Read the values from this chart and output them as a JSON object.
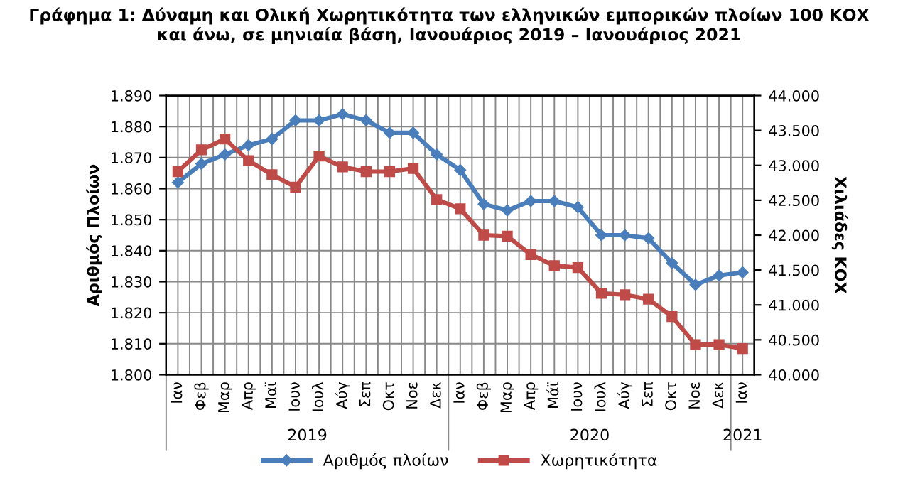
{
  "chart_data": {
    "type": "line",
    "title": "Γράφημα 1: Δύναμη και Ολική Χωρητικότητα των ελληνικών εμπορικών πλοίων 100 ΚΟΧ\nκαι άνω, σε μηνιαία βάση, Ιανουάριος 2019 – Ιανουάριος 2021",
    "ylabel": "Αριθμός Πλοίων",
    "y2label": "Χιλιάδες ΚΟΧ",
    "categories": [
      "Ιαν",
      "Φεβ",
      "Μαρ",
      "Απρ",
      "Μαϊ",
      "Ιουν",
      "Ιουλ",
      "Αύγ",
      "Σεπ",
      "Οκτ",
      "Νοε",
      "Δεκ",
      "Ιαν",
      "Φεβ",
      "Μαρ",
      "Απρ",
      "Μάϊ",
      "Ιουν",
      "Ιουλ",
      "Αύγ",
      "Σεπ",
      "Οκτ",
      "Νοε",
      "Δεκ",
      "Ιαν"
    ],
    "series": [
      {
        "name": "Αριθμός πλοίων",
        "color": "#4a7ebb",
        "marker": "diamond",
        "values": [
          1862,
          1868,
          1871,
          1874,
          1876,
          1882,
          1882,
          1884,
          1882,
          1878,
          1878,
          1871,
          1866,
          1855,
          1853,
          1856,
          1856,
          1854,
          1845,
          1845,
          1844,
          1836,
          1829,
          1832,
          1833
        ]
      },
      {
        "name": "Χωρητικότητα",
        "color": "#be4b48",
        "marker": "square",
        "axis": "y2",
        "values": [
          42911,
          43222,
          43378,
          43067,
          42867,
          42689,
          43133,
          42978,
          42911,
          42911,
          42956,
          42511,
          42378,
          42000,
          41986,
          41722,
          41563,
          41535,
          41167,
          41146,
          41083,
          40833,
          40431,
          40431,
          40375
        ]
      }
    ],
    "ylim": [
      1800,
      1890
    ],
    "yticks": [
      {
        "value": 1800,
        "label": "1.800"
      },
      {
        "value": 1810,
        "label": "1.810"
      },
      {
        "value": 1820,
        "label": "1.820"
      },
      {
        "value": 1830,
        "label": "1.830"
      },
      {
        "value": 1840,
        "label": "1.840"
      },
      {
        "value": 1850,
        "label": "1.850"
      },
      {
        "value": 1860,
        "label": "1.860"
      },
      {
        "value": 1870,
        "label": "1.870"
      },
      {
        "value": 1880,
        "label": "1.880"
      },
      {
        "value": 1890,
        "label": "1.890"
      }
    ],
    "y2lim": [
      40000,
      44000
    ],
    "y2ticks": [
      {
        "value": 40000,
        "label": "40.000"
      },
      {
        "value": 40500,
        "label": "40.500"
      },
      {
        "value": 41000,
        "label": "41.000"
      },
      {
        "value": 41500,
        "label": "41.500"
      },
      {
        "value": 42000,
        "label": "42.000"
      },
      {
        "value": 42500,
        "label": "42.500"
      },
      {
        "value": 43000,
        "label": "43.000"
      },
      {
        "value": 43500,
        "label": "43.500"
      },
      {
        "value": 44000,
        "label": "44.000"
      }
    ],
    "annotations": [
      "2019",
      "2020",
      "2021"
    ],
    "grid": true,
    "legend": "bottom",
    "line_style": "solid"
  }
}
